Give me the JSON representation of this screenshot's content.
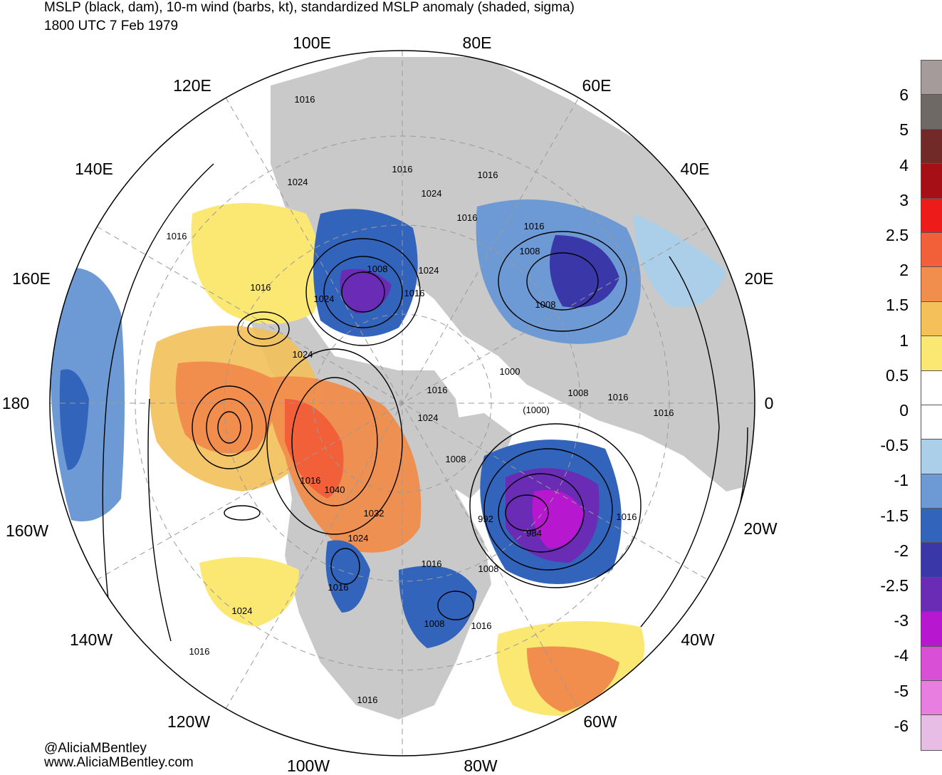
{
  "title": {
    "line1": "MSLP (black, dam), 10-m wind (barbs, kt), standardized MSLP anomaly (shaded, sigma)",
    "line2": "1800 UTC 7 Feb 1979"
  },
  "credits": {
    "handle": "@AliciaMBentley",
    "website": "www.AliciaMBentley.com"
  },
  "longitude_labels": [
    "100E",
    "80E",
    "120E",
    "60E",
    "140E",
    "40E",
    "160E",
    "20E",
    "180",
    "0",
    "160W",
    "20W",
    "140W",
    "40W",
    "120W",
    "60W",
    "100W",
    "80W"
  ],
  "colorbar": {
    "labels": [
      "6",
      "5",
      "4",
      "3",
      "2.5",
      "2",
      "1.5",
      "1",
      "0.5",
      "0",
      "-0.5",
      "-1",
      "-1.5",
      "-2",
      "-2.5",
      "-3",
      "-4",
      "-5",
      "-6"
    ],
    "colors": [
      "#a59b9b",
      "#6f6966",
      "#722a29",
      "#a50f15",
      "#ee1b1b",
      "#f2603a",
      "#f18d4d",
      "#f3c05a",
      "#fbe873",
      "#ffffff",
      "#ffffff",
      "#abcfe8",
      "#6d9ad4",
      "#3264bb",
      "#3a37a8",
      "#6a2bb5",
      "#b617cf",
      "#d950d6",
      "#e77ee0",
      "#e7bde6"
    ]
  },
  "contour_labels": [
    "1016",
    "1024",
    "1016",
    "1016",
    "1024",
    "1016",
    "1016",
    "1008",
    "1024",
    "1016",
    "1008",
    "1016",
    "1024",
    "1024",
    "1008",
    "1000",
    "1016",
    "1008",
    "1016",
    "1016",
    "(1000)",
    "1024",
    "1008",
    "1016",
    "1040",
    "992",
    "984",
    "1016",
    "1032",
    "1024",
    "1008",
    "1016",
    "1016",
    "1024",
    "1008",
    "1016",
    "1016",
    "1016",
    "1016"
  ],
  "map_colors": {
    "land": "#c9c9c9",
    "coast": "#555555",
    "contour": "#000000",
    "graticule": "#9a9a9a"
  }
}
